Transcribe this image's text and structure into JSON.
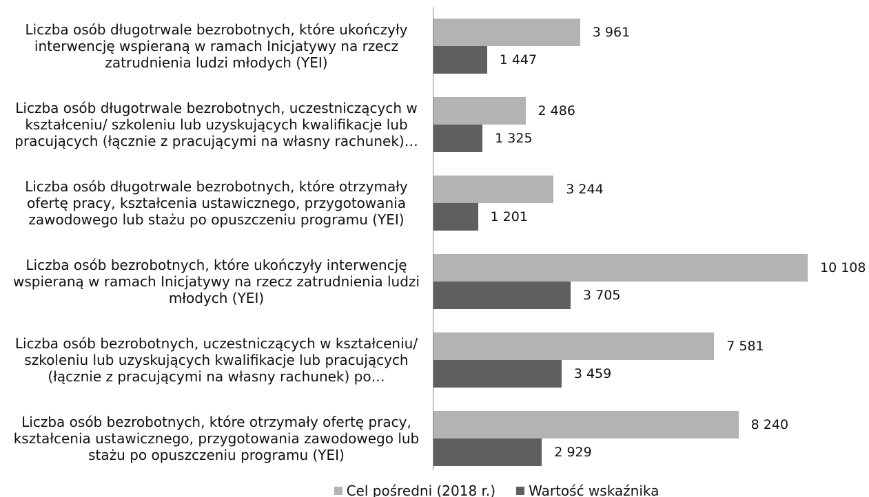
{
  "chart_data": {
    "type": "hbar",
    "categories": [
      "Liczba osób długotrwale bezrobotnych, które ukończyły interwencję wspieraną w ramach Inicjatywy na rzecz zatrudnienia ludzi młodych (YEI)",
      "Liczba osób długotrwale bezrobotnych, uczestniczących w kształceniu/ szkoleniu lub uzyskujących kwalifikacje lub pracujących (łącznie z pracującymi na własny rachunek)…",
      "Liczba osób długotrwale bezrobotnych, które otrzymały ofertę pracy, kształcenia ustawicznego, przygotowania zawodowego lub stażu po opuszczeniu programu (YEI)",
      "Liczba osób bezrobotnych, które ukończyły interwencję wspieraną w ramach Inicjatywy na rzecz zatrudnienia ludzi młodych (YEI)",
      "Liczba osób bezrobotnych, uczestniczących w kształceniu/ szkoleniu lub uzyskujących kwalifikacje lub pracujących (łącznie z pracującymi na własny rachunek) po…",
      "Liczba osób bezrobotnych, które otrzymały ofertę pracy, kształcenia ustawicznego, przygotowania zawodowego lub stażu po opuszczeniu programu (YEI)"
    ],
    "series": [
      {
        "name": "Cel pośredni (2018 r.)",
        "color": "#b3b3b3",
        "values": [
          3961,
          2486,
          3244,
          10108,
          7581,
          8240
        ],
        "value_labels": [
          "3 961",
          "2 486",
          "3 244",
          "10 108",
          "7 581",
          "8 240"
        ]
      },
      {
        "name": "Wartość wskaźnika",
        "color": "#5f5f5f",
        "values": [
          1447,
          1325,
          1201,
          3705,
          3459,
          2929
        ],
        "value_labels": [
          "1 447",
          "1 325",
          "1 201",
          "3 705",
          "3 459",
          "2 929"
        ]
      }
    ]
  }
}
